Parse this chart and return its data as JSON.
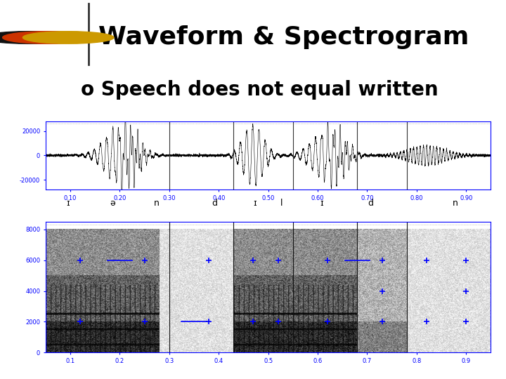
{
  "title": "Waveform & Spectrogram",
  "subtitle": "o Speech does not equal written",
  "bg_color": "#ffffff",
  "title_color": "#000000",
  "subtitle_color": "#000000",
  "dot_colors": [
    "#111111",
    "#cc3300",
    "#cc9900"
  ],
  "divider_color": "#333333",
  "waveform_color": "#000000",
  "waveform_bg": "#ffffff",
  "spectrogram_bg": "#ffffff",
  "blue_bar_color": "#3399ff",
  "waveform_yticks": [
    -20000,
    0,
    20000
  ],
  "waveform_xticks": [
    0.1,
    0.2,
    0.3,
    0.4,
    0.5,
    0.6,
    0.7,
    0.8,
    0.9
  ],
  "spectrogram_yticks": [
    0,
    2000,
    4000,
    6000,
    8000
  ],
  "spectrogram_xticks": [
    0.1,
    0.2,
    0.3,
    0.4,
    0.5,
    0.6,
    0.7,
    0.8,
    0.9
  ],
  "vertical_lines_wave": [
    0.3,
    0.43,
    0.55,
    0.68,
    0.78
  ],
  "vertical_lines_spec": [
    0.3,
    0.43,
    0.55,
    0.68,
    0.78
  ],
  "figsize": [
    7.2,
    5.4
  ],
  "dpi": 100
}
